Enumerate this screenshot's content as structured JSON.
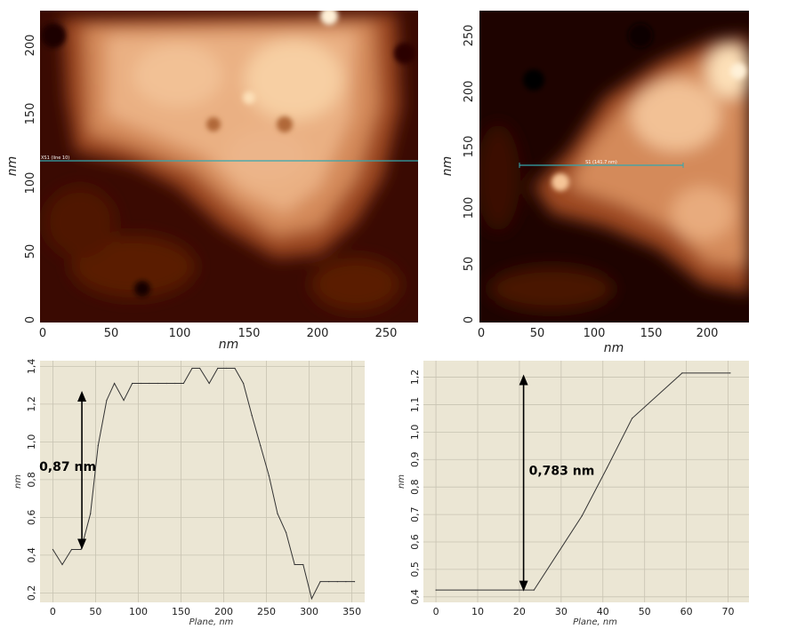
{
  "colors": {
    "plot_bg": "#ebe6d4",
    "grid": "#c8c3b2",
    "scan_line": "#33a8b0",
    "afm_dark": "#2a0500",
    "afm_light": "#ffe7c0"
  },
  "afm_left": {
    "xlabel": "nm",
    "ylabel": "nm",
    "x_ticks": [
      "0",
      "50",
      "100",
      "150",
      "200",
      "250"
    ],
    "y_ticks": [
      "0",
      "50",
      "100",
      "150",
      "200"
    ],
    "line_label": "XS1 (line 10)"
  },
  "afm_right": {
    "xlabel": "nm",
    "ylabel": "nm",
    "x_ticks": [
      "0",
      "50",
      "100",
      "150",
      "200"
    ],
    "y_ticks": [
      "0",
      "50",
      "100",
      "150",
      "200",
      "250"
    ],
    "line_label": "S1 (141.7 nm)"
  },
  "chart_data": [
    {
      "type": "line",
      "xlabel": "Plane, nm",
      "ylabel": "nm",
      "xlim": [
        -15,
        365
      ],
      "ylim": [
        0.15,
        1.43
      ],
      "x_ticks": [
        "0",
        "50",
        "100",
        "150",
        "200",
        "250",
        "300",
        "350"
      ],
      "y_ticks": [
        "0,2",
        "0,4",
        "0,6",
        "0,8",
        "1,0",
        "1,2",
        "1,4"
      ],
      "grid": true,
      "annotation": "0,87 nm",
      "arrow": {
        "x": 34,
        "y1": 0.43,
        "y2": 1.27
      },
      "series": [
        {
          "x": [
            0,
            11,
            22,
            33,
            44,
            53,
            63,
            72,
            83,
            93,
            103,
            113,
            123,
            133,
            143,
            153,
            163,
            172,
            183,
            193,
            203,
            213,
            223,
            233,
            243,
            253,
            263,
            273,
            283,
            293,
            303,
            313,
            323,
            333,
            343,
            353
          ],
          "y": [
            0.43,
            0.35,
            0.43,
            0.43,
            0.62,
            0.98,
            1.22,
            1.31,
            1.22,
            1.31,
            1.31,
            1.31,
            1.31,
            1.31,
            1.31,
            1.31,
            1.39,
            1.39,
            1.31,
            1.39,
            1.39,
            1.39,
            1.31,
            1.14,
            0.98,
            0.82,
            0.62,
            0.52,
            0.35,
            0.35,
            0.17,
            0.26,
            0.26,
            0.26,
            0.26,
            0.26
          ]
        }
      ]
    },
    {
      "type": "line",
      "xlabel": "Plane, nm",
      "ylabel": "nm",
      "xlim": [
        -3,
        75
      ],
      "ylim": [
        0.38,
        1.26
      ],
      "x_ticks": [
        "0",
        "10",
        "20",
        "30",
        "40",
        "50",
        "60",
        "70"
      ],
      "y_ticks": [
        "0,4",
        "0,5",
        "0,6",
        "0,7",
        "0,8",
        "0,9",
        "1,0",
        "1,1",
        "1,2"
      ],
      "grid": true,
      "annotation": "0,783 nm",
      "arrow": {
        "x": 21,
        "y1": 0.42,
        "y2": 1.21
      },
      "series": [
        {
          "x": [
            0,
            23.5,
            35,
            41,
            47,
            59,
            70.5
          ],
          "y": [
            0.425,
            0.425,
            0.695,
            0.87,
            1.05,
            1.215,
            1.215
          ]
        }
      ]
    }
  ]
}
